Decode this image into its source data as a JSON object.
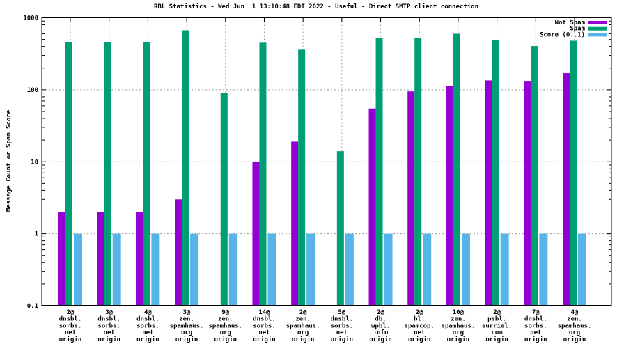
{
  "title": "RBL Statistics - Wed Jun  1 13:10:48 EDT 2022 - Useful - Direct SMTP client connection",
  "chart_data": {
    "type": "bar",
    "title": "RBL Statistics - Wed Jun  1 13:10:48 EDT 2022 - Useful - Direct SMTP client connection",
    "ylabel": "Message Count or Spam Score",
    "xlabel": "",
    "yscale": "log",
    "ylim": [
      0.1,
      1000
    ],
    "ytick_labels": [
      "0.1",
      "1",
      "10",
      "100",
      "1000"
    ],
    "grid": "dashed gray horizontal lines at 1/10/100 and vertical line at each category center",
    "legend_position": "top-right inside plot area",
    "categories": [
      [
        "2@",
        "dnsbl.",
        "sorbs.",
        "net",
        "origin"
      ],
      [
        "3@",
        "dnsbl.",
        "sorbs.",
        "net",
        "origin"
      ],
      [
        "4@",
        "dnsbl.",
        "sorbs.",
        "net",
        "origin"
      ],
      [
        "3@",
        "zen.",
        "spamhaus.",
        "org",
        "origin"
      ],
      [
        "9@",
        "zen.",
        "spamhaus.",
        "org",
        "origin"
      ],
      [
        "14@",
        "dnsbl.",
        "sorbs.",
        "net",
        "origin"
      ],
      [
        "2@",
        "zen.",
        "spamhaus.",
        "org",
        "origin"
      ],
      [
        "5@",
        "dnsbl.",
        "sorbs.",
        "net",
        "origin"
      ],
      [
        "2@",
        "db.",
        "wpbl.",
        "info",
        "origin"
      ],
      [
        "2@",
        "bl.",
        "spamcop.",
        "net",
        "origin"
      ],
      [
        "10@",
        "zen.",
        "spamhaus.",
        "org",
        "origin"
      ],
      [
        "2@",
        "psbl.",
        "surriel.",
        "com",
        "origin"
      ],
      [
        "7@",
        "dnsbl.",
        "sorbs.",
        "net",
        "origin"
      ],
      [
        "4@",
        "zen.",
        "spamhaus.",
        "org",
        "origin"
      ]
    ],
    "series": [
      {
        "name": "Not Spam",
        "color": "#9400d3",
        "values": [
          2,
          2,
          2,
          3,
          null,
          10,
          19,
          null,
          55,
          95,
          113,
          135,
          130,
          170
        ]
      },
      {
        "name": "Spam",
        "color": "#009e73",
        "values": [
          460,
          460,
          460,
          670,
          90,
          450,
          360,
          14,
          525,
          525,
          600,
          490,
          405,
          480
        ]
      },
      {
        "name": "Score (0..1)",
        "color": "#56b4e9",
        "values": [
          1,
          1,
          1,
          1,
          1,
          1,
          1,
          1,
          1,
          1,
          1,
          1,
          1,
          1
        ]
      }
    ],
    "colors": {
      "not_spam": "#9400d3",
      "spam": "#009e73",
      "score": "#56b4e9",
      "grid": "#999999",
      "axis": "#000000",
      "background": "#ffffff"
    }
  }
}
